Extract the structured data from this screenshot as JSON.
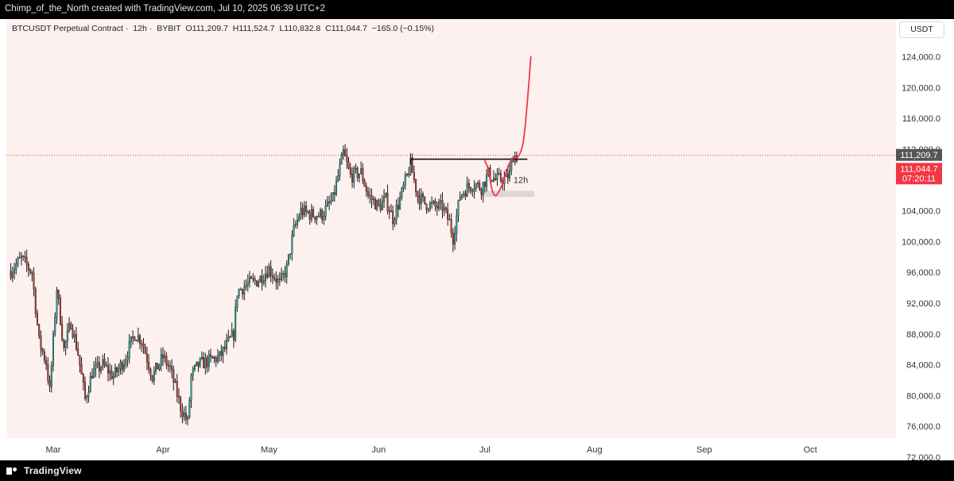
{
  "header": {
    "caption": "Chimp_of_the_North created with TradingView.com, Jul 10, 2025 06:39 UTC+2"
  },
  "legend": {
    "symbol": "BTCUSDT Perpetual Contract",
    "interval": "12h",
    "exchange": "BYBIT",
    "open": "O111,209.7",
    "high": "H111,524.7",
    "low": "L110,832.8",
    "close": "C111,044.7",
    "change": "−165.0 (−0.15%)"
  },
  "currency": "USDT",
  "price_scale": {
    "ticks": [
      "72,000.0",
      "76,000.0",
      "80,000.0",
      "84,000.0",
      "88,000.0",
      "92,000.0",
      "96,000.0",
      "100,000.0",
      "104,000.0",
      "108,000.0",
      "112,000.0",
      "116,000.0",
      "120,000.0",
      "124,000.0"
    ],
    "open_label": "111,209.7",
    "close_label": "111,044.7",
    "countdown": "07:20:11"
  },
  "time_scale": {
    "labels": [
      "Mar",
      "Apr",
      "May",
      "Jun",
      "Jul",
      "Aug",
      "Sep",
      "Oct"
    ]
  },
  "annotation": {
    "zone_label": "12h"
  },
  "brand": "TradingView",
  "colors": {
    "background": "#fdf1f0",
    "up": "#26a69a",
    "down": "#c0392b",
    "projection": "#f0384a",
    "price_line": "#f0384a",
    "open_label_bg": "#555555",
    "close_label_bg": "#f23645"
  },
  "chart_data": {
    "type": "candlestick",
    "interval": "12h",
    "ylim": [
      72000,
      124000
    ],
    "y_ticks": [
      72000,
      76000,
      80000,
      84000,
      88000,
      92000,
      96000,
      100000,
      104000,
      108000,
      112000,
      116000,
      120000,
      124000
    ],
    "price_line": 111209.7,
    "resistance": {
      "from": "2025-06-10",
      "to": "2025-07-13",
      "price": 110700
    },
    "support_zone": {
      "from": "2025-06-30",
      "to": "2025-07-15",
      "low": 105800,
      "high": 106600
    },
    "projection": [
      [
        "2025-07-01",
        110500
      ],
      [
        "2025-07-02",
        109500
      ],
      [
        "2025-07-03",
        106500
      ],
      [
        "2025-07-04",
        105800
      ],
      [
        "2025-07-05",
        106500
      ],
      [
        "2025-07-06",
        107500
      ],
      [
        "2025-07-07",
        109000
      ],
      [
        "2025-07-08",
        110300
      ],
      [
        "2025-07-09",
        111000
      ],
      [
        "2025-07-10",
        110800
      ],
      [
        "2025-07-11",
        111400
      ],
      [
        "2025-07-12",
        113000
      ],
      [
        "2025-07-13",
        118000
      ],
      [
        "2025-07-14",
        124000
      ]
    ],
    "series": [
      {
        "date": "2025-02-17",
        "close": 96200
      },
      {
        "date": "2025-02-20",
        "close": 97800
      },
      {
        "date": "2025-02-23",
        "close": 96000
      },
      {
        "date": "2025-02-25",
        "close": 87000
      },
      {
        "date": "2025-02-27",
        "close": 84300
      },
      {
        "date": "2025-02-28",
        "close": 80500
      },
      {
        "date": "2025-03-02",
        "close": 94000
      },
      {
        "date": "2025-03-04",
        "close": 86000
      },
      {
        "date": "2025-03-06",
        "close": 89500
      },
      {
        "date": "2025-03-08",
        "close": 85500
      },
      {
        "date": "2025-03-10",
        "close": 79500
      },
      {
        "date": "2025-03-12",
        "close": 83000
      },
      {
        "date": "2025-03-15",
        "close": 84000
      },
      {
        "date": "2025-03-18",
        "close": 82500
      },
      {
        "date": "2025-03-21",
        "close": 84500
      },
      {
        "date": "2025-03-24",
        "close": 88000
      },
      {
        "date": "2025-03-26",
        "close": 87200
      },
      {
        "date": "2025-03-29",
        "close": 82500
      },
      {
        "date": "2025-04-01",
        "close": 85000
      },
      {
        "date": "2025-04-03",
        "close": 83500
      },
      {
        "date": "2025-04-06",
        "close": 78500
      },
      {
        "date": "2025-04-08",
        "close": 76500
      },
      {
        "date": "2025-04-09",
        "close": 82500
      },
      {
        "date": "2025-04-11",
        "close": 84000
      },
      {
        "date": "2025-04-14",
        "close": 84500
      },
      {
        "date": "2025-04-17",
        "close": 85000
      },
      {
        "date": "2025-04-21",
        "close": 88000
      },
      {
        "date": "2025-04-22",
        "close": 93500
      },
      {
        "date": "2025-04-25",
        "close": 94500
      },
      {
        "date": "2025-04-28",
        "close": 95000
      },
      {
        "date": "2025-05-01",
        "close": 96500
      },
      {
        "date": "2025-05-04",
        "close": 94500
      },
      {
        "date": "2025-05-06",
        "close": 96500
      },
      {
        "date": "2025-05-08",
        "close": 101500
      },
      {
        "date": "2025-05-10",
        "close": 104000
      },
      {
        "date": "2025-05-13",
        "close": 103500
      },
      {
        "date": "2025-05-16",
        "close": 103500
      },
      {
        "date": "2025-05-19",
        "close": 105500
      },
      {
        "date": "2025-05-21",
        "close": 109500
      },
      {
        "date": "2025-05-22",
        "close": 111500
      },
      {
        "date": "2025-05-24",
        "close": 108500
      },
      {
        "date": "2025-05-27",
        "close": 109000
      },
      {
        "date": "2025-05-29",
        "close": 106000
      },
      {
        "date": "2025-06-01",
        "close": 104500
      },
      {
        "date": "2025-06-03",
        "close": 105500
      },
      {
        "date": "2025-06-05",
        "close": 103000
      },
      {
        "date": "2025-06-07",
        "close": 105500
      },
      {
        "date": "2025-06-09",
        "close": 108500
      },
      {
        "date": "2025-06-10",
        "close": 110000
      },
      {
        "date": "2025-06-12",
        "close": 106000
      },
      {
        "date": "2025-06-14",
        "close": 105000
      },
      {
        "date": "2025-06-17",
        "close": 104500
      },
      {
        "date": "2025-06-19",
        "close": 104500
      },
      {
        "date": "2025-06-21",
        "close": 102500
      },
      {
        "date": "2025-06-22",
        "close": 100500
      },
      {
        "date": "2025-06-24",
        "close": 106000
      },
      {
        "date": "2025-06-26",
        "close": 107000
      },
      {
        "date": "2025-06-28",
        "close": 107500
      },
      {
        "date": "2025-06-30",
        "close": 107000
      },
      {
        "date": "2025-07-02",
        "close": 108800
      },
      {
        "date": "2025-07-04",
        "close": 108000
      },
      {
        "date": "2025-07-07",
        "close": 108200
      },
      {
        "date": "2025-07-08",
        "close": 108800
      },
      {
        "date": "2025-07-09",
        "close": 111209.7
      },
      {
        "date": "2025-07-10",
        "close": 111044.7
      }
    ]
  }
}
